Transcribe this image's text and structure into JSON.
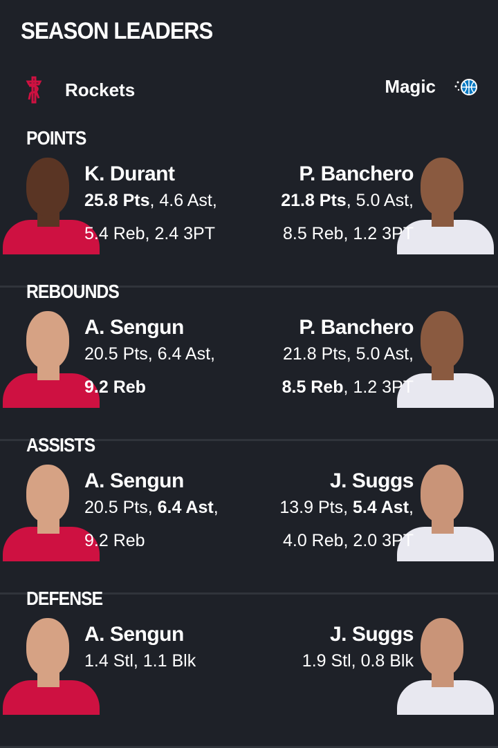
{
  "title": "SEASON LEADERS",
  "teams": {
    "home": {
      "name": "Rockets",
      "icon": "rockets-logo",
      "color": "#ce1141"
    },
    "away": {
      "name": "Magic",
      "icon": "magic-logo",
      "color": "#0077c0"
    }
  },
  "sections": [
    {
      "title": "POINTS",
      "left": {
        "name": "K. Durant",
        "line1": [
          {
            "t": "25.8 Pts",
            "b": true
          },
          {
            "t": ", 4.6 Ast,",
            "b": false
          }
        ],
        "line2": [
          {
            "t": "5.4 Reb, 2.4 3PT",
            "b": false
          }
        ],
        "skin": "#5a3524",
        "jersey": "#ce1141"
      },
      "right": {
        "name": "P. Banchero",
        "line1": [
          {
            "t": "21.8 Pts",
            "b": true
          },
          {
            "t": ", 5.0 Ast,",
            "b": false
          }
        ],
        "line2": [
          {
            "t": "8.5 Reb, 1.2 3PT",
            "b": false
          }
        ],
        "skin": "#8a5a40",
        "jersey": "#e8e8f0"
      }
    },
    {
      "title": "REBOUNDS",
      "left": {
        "name": "A. Sengun",
        "line1": [
          {
            "t": "20.5 Pts, 6.4 Ast,",
            "b": false
          }
        ],
        "line2": [
          {
            "t": "9.2 Reb",
            "b": true
          }
        ],
        "skin": "#d6a284",
        "jersey": "#ce1141"
      },
      "right": {
        "name": "P. Banchero",
        "line1": [
          {
            "t": "21.8 Pts, 5.0 Ast,",
            "b": false
          }
        ],
        "line2": [
          {
            "t": "8.5 Reb",
            "b": true
          },
          {
            "t": ", 1.2 3PT",
            "b": false
          }
        ],
        "skin": "#8a5a40",
        "jersey": "#e8e8f0"
      }
    },
    {
      "title": "ASSISTS",
      "left": {
        "name": "A. Sengun",
        "line1": [
          {
            "t": "20.5 Pts, ",
            "b": false
          },
          {
            "t": "6.4 Ast",
            "b": true
          },
          {
            "t": ",",
            "b": false
          }
        ],
        "line2": [
          {
            "t": "9.2 Reb",
            "b": false
          }
        ],
        "skin": "#d6a284",
        "jersey": "#ce1141"
      },
      "right": {
        "name": "J. Suggs",
        "line1": [
          {
            "t": "13.9 Pts, ",
            "b": false
          },
          {
            "t": "5.4 Ast",
            "b": true
          },
          {
            "t": ",",
            "b": false
          }
        ],
        "line2": [
          {
            "t": "4.0 Reb, 2.0 3PT",
            "b": false
          }
        ],
        "skin": "#c99478",
        "jersey": "#e8e8f0"
      }
    },
    {
      "title": "DEFENSE",
      "left": {
        "name": "A. Sengun",
        "line1": [
          {
            "t": "1.4 Stl, 1.1 Blk",
            "b": false
          }
        ],
        "line2": [],
        "skin": "#d6a284",
        "jersey": "#ce1141"
      },
      "right": {
        "name": "J. Suggs",
        "line1": [
          {
            "t": "1.9 Stl, 0.8 Blk",
            "b": false
          }
        ],
        "line2": [],
        "skin": "#c99478",
        "jersey": "#e8e8f0"
      }
    }
  ]
}
